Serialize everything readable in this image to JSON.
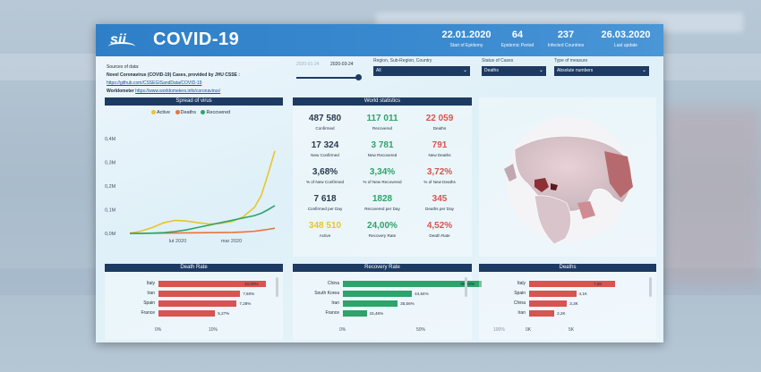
{
  "header": {
    "title": "COVID-19",
    "logo_text": "sii",
    "kpis": [
      {
        "value": "22.01.2020",
        "label": "Start of Epidemy"
      },
      {
        "value": "64",
        "label": "Epidemic Period"
      },
      {
        "value": "237",
        "label": "Infected Countries"
      },
      {
        "value": "26.03.2020",
        "label": "Last update"
      }
    ]
  },
  "sources": {
    "line1": "Sources of data:",
    "line2": "Novel Coronavirus (COVID-19) Cases, provided by JHU CSSE :",
    "link1": "https://github.com/CSSEGISandData/COVID-19",
    "line4_label": "Worldometer",
    "link2": "https://www.worldometers.info/coronavirus/"
  },
  "date_slider": {
    "from": "2020-01-24",
    "to": "2020-03-24"
  },
  "filters": [
    {
      "label": "Region, Sub-Region, Country",
      "value": "All"
    },
    {
      "label": "Status of Cases",
      "value": "Deaths"
    },
    {
      "label": "Type of measure",
      "value": "Absolute numbers"
    }
  ],
  "spread": {
    "title": "Spread of virus",
    "legend": [
      "Active",
      "Deaths",
      "Recovered"
    ],
    "colors": {
      "Active": "#e8c52a",
      "Deaths": "#e8743b",
      "Recovered": "#2ea36b"
    }
  },
  "world": {
    "title": "World statistics",
    "rows": [
      [
        {
          "v": "487 580",
          "l": "Confirmed",
          "c": "dark"
        },
        {
          "v": "117 011",
          "l": "Recovered",
          "c": "green"
        },
        {
          "v": "22 059",
          "l": "Deaths",
          "c": "red"
        }
      ],
      [
        {
          "v": "17 324",
          "l": "New Confirmed",
          "c": "dark"
        },
        {
          "v": "3 781",
          "l": "New Recovered",
          "c": "green"
        },
        {
          "v": "791",
          "l": "New Deaths",
          "c": "red"
        }
      ],
      [
        {
          "v": "3,68%",
          "l": "% of New Confirmed",
          "c": "dark"
        },
        {
          "v": "3,34%",
          "l": "% of New Recovered",
          "c": "green"
        },
        {
          "v": "3,72%",
          "l": "% of New Deaths",
          "c": "red"
        }
      ],
      [
        {
          "v": "7 618",
          "l": "Confirmed per Day",
          "c": "dark"
        },
        {
          "v": "1828",
          "l": "Recovered per Day",
          "c": "green"
        },
        {
          "v": "345",
          "l": "Deaths per Day",
          "c": "red"
        }
      ],
      [
        {
          "v": "348 510",
          "l": "Active",
          "c": "yel"
        },
        {
          "v": "24,00%",
          "l": "Recovery Rate",
          "c": "green"
        },
        {
          "v": "4,52%",
          "l": "Death Rate",
          "c": "red"
        }
      ]
    ]
  },
  "death_rate": {
    "title": "Death Rate",
    "items": [
      {
        "label": "Italy",
        "text": "10,00%",
        "frac": 1.0
      },
      {
        "label": "Iran",
        "text": "7,60%",
        "frac": 0.76
      },
      {
        "label": "Spain",
        "text": "7,28%",
        "frac": 0.728
      },
      {
        "label": "France",
        "text": "5,27%",
        "frac": 0.527
      }
    ],
    "axis": [
      "0%",
      "10%"
    ],
    "color": "#d9534f"
  },
  "recovery_rate": {
    "title": "Recovery Rate",
    "items": [
      {
        "label": "China",
        "text": "90,33%",
        "frac": 0.9033
      },
      {
        "label": "South Korea",
        "text": "44,84%",
        "frac": 0.4484
      },
      {
        "label": "Iran",
        "text": "35,56%",
        "frac": 0.3556
      },
      {
        "label": "France",
        "text": "15,46%",
        "frac": 0.1546
      }
    ],
    "axis": [
      "0%",
      "50%",
      "100%"
    ],
    "color": "#2ea36b"
  },
  "deaths": {
    "title": "Deaths",
    "items": [
      {
        "label": "Italy",
        "text": "7,5K",
        "frac": 1.0
      },
      {
        "label": "Spain",
        "text": "4,1K",
        "frac": 0.547
      },
      {
        "label": "China",
        "text": "3,3K",
        "frac": 0.44
      },
      {
        "label": "Iran",
        "text": "2,2K",
        "frac": 0.293
      }
    ],
    "axis": [
      "0K",
      "5K"
    ],
    "color": "#d9534f"
  },
  "chart_data": {
    "type": "line",
    "title": "Spread of virus",
    "x_ticks": [
      "lut 2020",
      "mar 2020"
    ],
    "y_ticks": [
      "0,0M",
      "0,1M",
      "0,2M",
      "0,3M",
      "0,4M"
    ],
    "ylim": [
      0,
      0.4
    ],
    "x": [
      0,
      5,
      10,
      15,
      20,
      25,
      30,
      35,
      40,
      45,
      50,
      55,
      58,
      61,
      64
    ],
    "series": [
      {
        "name": "Active",
        "values": [
          0.001,
          0.01,
          0.025,
          0.045,
          0.055,
          0.052,
          0.045,
          0.04,
          0.042,
          0.05,
          0.07,
          0.11,
          0.16,
          0.25,
          0.348
        ]
      },
      {
        "name": "Deaths",
        "values": [
          0,
          0,
          0.0005,
          0.001,
          0.0015,
          0.002,
          0.0025,
          0.003,
          0.0035,
          0.004,
          0.006,
          0.009,
          0.013,
          0.017,
          0.022
        ]
      },
      {
        "name": "Recovered",
        "values": [
          0,
          0,
          0.001,
          0.003,
          0.008,
          0.015,
          0.025,
          0.035,
          0.045,
          0.055,
          0.065,
          0.075,
          0.085,
          0.1,
          0.117
        ]
      }
    ]
  }
}
